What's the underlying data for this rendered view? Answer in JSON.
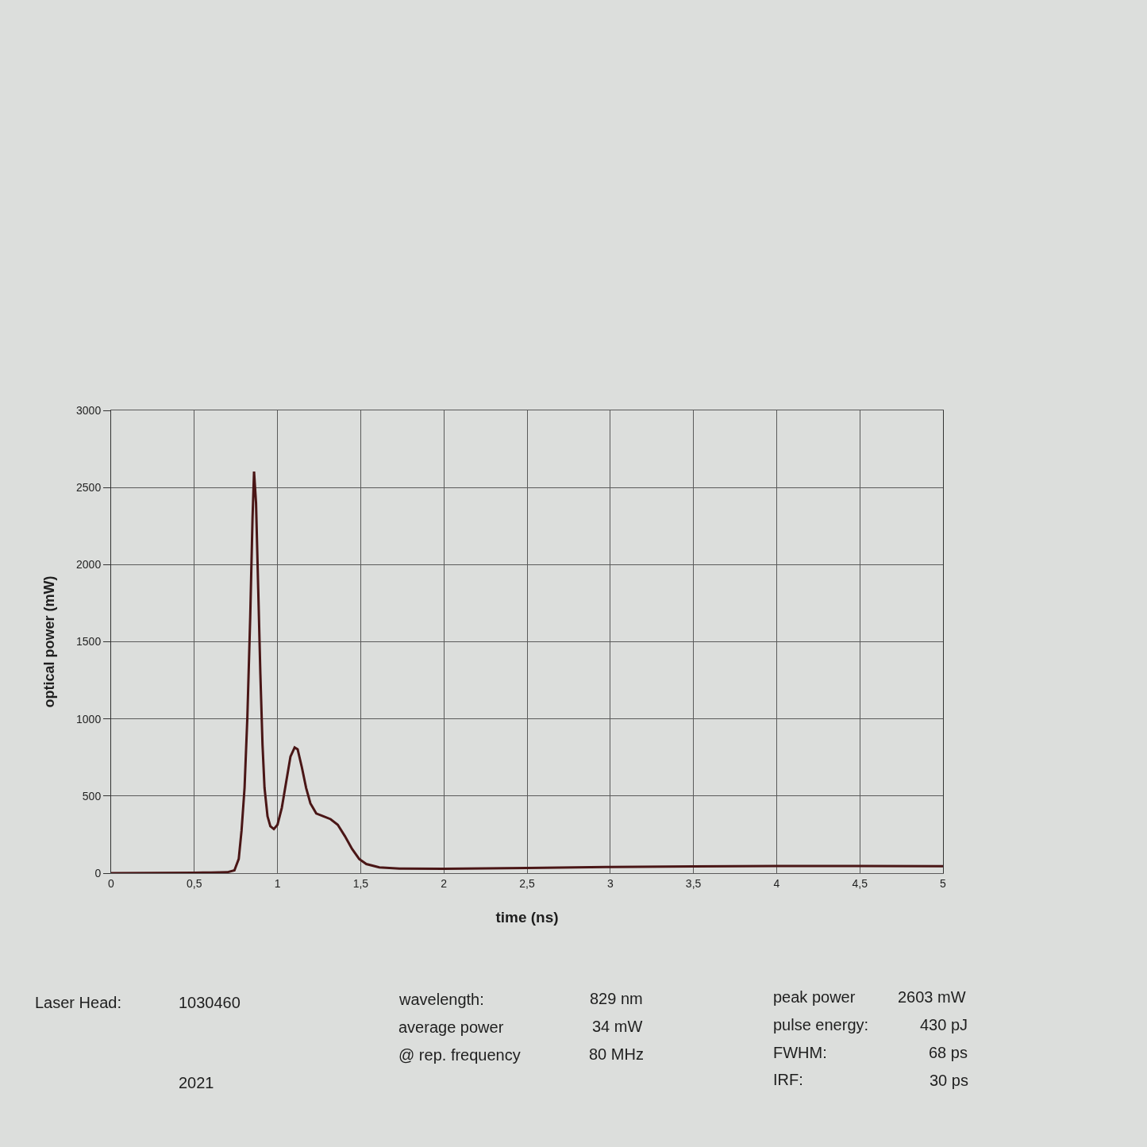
{
  "chart_data": {
    "type": "line",
    "xlabel": "time (ns)",
    "ylabel": "optical power (mW)",
    "x": [
      0,
      0.25,
      0.5,
      0.6,
      0.698,
      0.741,
      0.767,
      0.784,
      0.802,
      0.819,
      0.836,
      0.85,
      0.859,
      0.871,
      0.884,
      0.897,
      0.91,
      0.922,
      0.94,
      0.957,
      0.978,
      1.0,
      1.026,
      1.052,
      1.078,
      1.103,
      1.121,
      1.147,
      1.172,
      1.198,
      1.233,
      1.276,
      1.319,
      1.362,
      1.405,
      1.448,
      1.491,
      1.534,
      1.612,
      1.733,
      2.0,
      2.5,
      3.0,
      3.5,
      4.0,
      4.5,
      5.0
    ],
    "series": [
      {
        "color": "#4a1616",
        "values": [
          0,
          1,
          3,
          4,
          6,
          18,
          92,
          277,
          553,
          1015,
          1660,
          2306,
          2603,
          2400,
          1845,
          1292,
          830,
          553,
          369,
          304,
          286,
          314,
          424,
          590,
          756,
          815,
          803,
          683,
          553,
          452,
          387,
          369,
          350,
          314,
          240,
          157,
          92,
          59,
          37,
          30,
          28,
          33,
          40,
          44,
          46,
          46,
          45
        ]
      }
    ],
    "xlim": [
      0,
      5
    ],
    "ylim": [
      0,
      3000
    ],
    "xticks": [
      0,
      {
        "value": 0.5,
        "label": "0,5"
      },
      1,
      {
        "value": 1.5,
        "label": "1,5"
      },
      2,
      {
        "value": 2.5,
        "label": "2,5"
      },
      3,
      {
        "value": 3.5,
        "label": "3,5"
      },
      4,
      {
        "value": 4.5,
        "label": "4,5"
      },
      5
    ],
    "yticks": [
      0,
      500,
      1000,
      1500,
      2000,
      2500,
      3000
    ],
    "grid": true,
    "legend": false,
    "marker": "none",
    "line_style": "solid",
    "annotations": [
      "Laser Head:",
      "1030460",
      "wavelength:",
      "829 nm",
      "peak power",
      "2603 mW",
      "average power",
      "34 mW",
      "pulse energy:",
      "430 pJ",
      "@ rep. frequency",
      "80 MHz",
      "FWHM:",
      "68 ps",
      "2021",
      "IRF:",
      "30 ps"
    ]
  }
}
